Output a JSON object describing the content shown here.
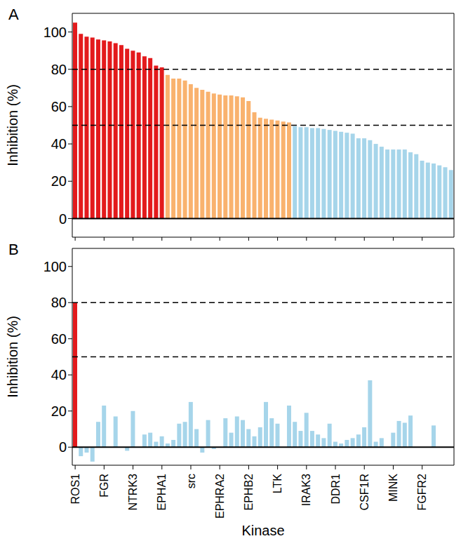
{
  "chart_data": [
    {
      "type": "bar",
      "title": "A",
      "y_label": "Inhibition (%)",
      "categories": [
        "ROS1",
        null,
        null,
        null,
        null,
        "FGR",
        null,
        null,
        null,
        null,
        "NTRK3",
        null,
        null,
        null,
        null,
        "EPHA1",
        null,
        null,
        null,
        null,
        "src",
        null,
        null,
        null,
        null,
        "EPHRA2",
        null,
        null,
        null,
        null,
        "EPHB2",
        null,
        null,
        null,
        null,
        "LTK",
        null,
        null,
        null,
        null,
        "IRAK3",
        null,
        null,
        null,
        null,
        "DDR1",
        null,
        null,
        null,
        null,
        "CSF1R",
        null,
        null,
        null,
        null,
        "MINK",
        null,
        null,
        null,
        null,
        "FGFR2",
        null,
        null,
        null,
        null,
        null
      ],
      "values": [
        105,
        99,
        97.5,
        97,
        96,
        95.5,
        95,
        94,
        93,
        91,
        90,
        89,
        87,
        86,
        82,
        81,
        77,
        75,
        75,
        74,
        72,
        70,
        69,
        68,
        67,
        66.5,
        66,
        66,
        65.5,
        65,
        63,
        57,
        54,
        53.5,
        53,
        52.5,
        52,
        51.5,
        49.5,
        49,
        49,
        48.5,
        48.5,
        48,
        47.5,
        47,
        46.5,
        46,
        45.5,
        43,
        43,
        42,
        40,
        38.5,
        37,
        37,
        37,
        37,
        35.5,
        34.5,
        31,
        30,
        29.5,
        28.5,
        27.5,
        26
      ],
      "colors": [
        "#e31a1c",
        "#e31a1c",
        "#e31a1c",
        "#e31a1c",
        "#e31a1c",
        "#e31a1c",
        "#e31a1c",
        "#e31a1c",
        "#e31a1c",
        "#e31a1c",
        "#e31a1c",
        "#e31a1c",
        "#e31a1c",
        "#e31a1c",
        "#e31a1c",
        "#e31a1c",
        "#f9b26e",
        "#f9b26e",
        "#f9b26e",
        "#f9b26e",
        "#f9b26e",
        "#f9b26e",
        "#f9b26e",
        "#f9b26e",
        "#f9b26e",
        "#f9b26e",
        "#f9b26e",
        "#f9b26e",
        "#f9b26e",
        "#f9b26e",
        "#f9b26e",
        "#f9b26e",
        "#f9b26e",
        "#f9b26e",
        "#f9b26e",
        "#f9b26e",
        "#f9b26e",
        "#f9b26e",
        "#a6d5ea",
        "#a6d5ea",
        "#a6d5ea",
        "#a6d5ea",
        "#a6d5ea",
        "#a6d5ea",
        "#a6d5ea",
        "#a6d5ea",
        "#a6d5ea",
        "#a6d5ea",
        "#a6d5ea",
        "#a6d5ea",
        "#a6d5ea",
        "#a6d5ea",
        "#a6d5ea",
        "#a6d5ea",
        "#a6d5ea",
        "#a6d5ea",
        "#a6d5ea",
        "#a6d5ea",
        "#a6d5ea",
        "#a6d5ea",
        "#a6d5ea",
        "#a6d5ea",
        "#a6d5ea",
        "#a6d5ea",
        "#a6d5ea",
        "#a6d5ea"
      ],
      "ylim": [
        -10,
        110
      ],
      "yticks": [
        0,
        20,
        40,
        60,
        80,
        100
      ],
      "thresholds": [
        80,
        50
      ],
      "baseline": 0,
      "tick_labels": "y"
    },
    {
      "type": "bar",
      "title": "B",
      "y_label": "Inhibition (%)",
      "x_label": "Kinase",
      "categories": [
        "ROS1",
        null,
        null,
        null,
        null,
        "FGR",
        null,
        null,
        null,
        null,
        "NTRK3",
        null,
        null,
        null,
        null,
        "EPHA1",
        null,
        null,
        null,
        null,
        "src",
        null,
        null,
        null,
        null,
        "EPHRA2",
        null,
        null,
        null,
        null,
        "EPHB2",
        null,
        null,
        null,
        null,
        "LTK",
        null,
        null,
        null,
        null,
        "IRAK3",
        null,
        null,
        null,
        null,
        "DDR1",
        null,
        null,
        null,
        null,
        "CSF1R",
        null,
        null,
        null,
        null,
        "MINK",
        null,
        null,
        null,
        null,
        "FGFR2",
        null,
        null,
        null,
        null,
        null
      ],
      "values": [
        80,
        -5,
        -3,
        -8,
        14,
        23,
        0,
        17,
        0,
        -2,
        20,
        0,
        7,
        8,
        3,
        6,
        2,
        4,
        13,
        14,
        25,
        10,
        -3,
        15,
        -1,
        0,
        16,
        8,
        17,
        15,
        10,
        6,
        11,
        25,
        16,
        13,
        0,
        23,
        14,
        9,
        19,
        9,
        7,
        5,
        13,
        3,
        2,
        4,
        5,
        7,
        11,
        37,
        3,
        5,
        0,
        8,
        14.5,
        13.5,
        17.5,
        0,
        0,
        0,
        12,
        0,
        0,
        0
      ],
      "colors": [
        "#e31a1c",
        "#a6d5ea",
        "#a6d5ea",
        "#a6d5ea",
        "#a6d5ea",
        "#a6d5ea",
        "#a6d5ea",
        "#a6d5ea",
        "#a6d5ea",
        "#a6d5ea",
        "#a6d5ea",
        "#a6d5ea",
        "#a6d5ea",
        "#a6d5ea",
        "#a6d5ea",
        "#a6d5ea",
        "#a6d5ea",
        "#a6d5ea",
        "#a6d5ea",
        "#a6d5ea",
        "#a6d5ea",
        "#a6d5ea",
        "#a6d5ea",
        "#a6d5ea",
        "#a6d5ea",
        "#a6d5ea",
        "#a6d5ea",
        "#a6d5ea",
        "#a6d5ea",
        "#a6d5ea",
        "#a6d5ea",
        "#a6d5ea",
        "#a6d5ea",
        "#a6d5ea",
        "#a6d5ea",
        "#a6d5ea",
        "#a6d5ea",
        "#a6d5ea",
        "#a6d5ea",
        "#a6d5ea",
        "#a6d5ea",
        "#a6d5ea",
        "#a6d5ea",
        "#a6d5ea",
        "#a6d5ea",
        "#a6d5ea",
        "#a6d5ea",
        "#a6d5ea",
        "#a6d5ea",
        "#a6d5ea",
        "#a6d5ea",
        "#a6d5ea",
        "#a6d5ea",
        "#a6d5ea",
        "#a6d5ea",
        "#a6d5ea",
        "#a6d5ea",
        "#a6d5ea",
        "#a6d5ea",
        "#a6d5ea",
        "#a6d5ea",
        "#a6d5ea",
        "#a6d5ea",
        "#a6d5ea",
        "#a6d5ea",
        "#a6d5ea"
      ],
      "ylim": [
        -10,
        110
      ],
      "yticks": [
        0,
        20,
        40,
        60,
        80,
        100
      ],
      "thresholds": [
        80,
        50
      ],
      "baseline": 0
    }
  ]
}
